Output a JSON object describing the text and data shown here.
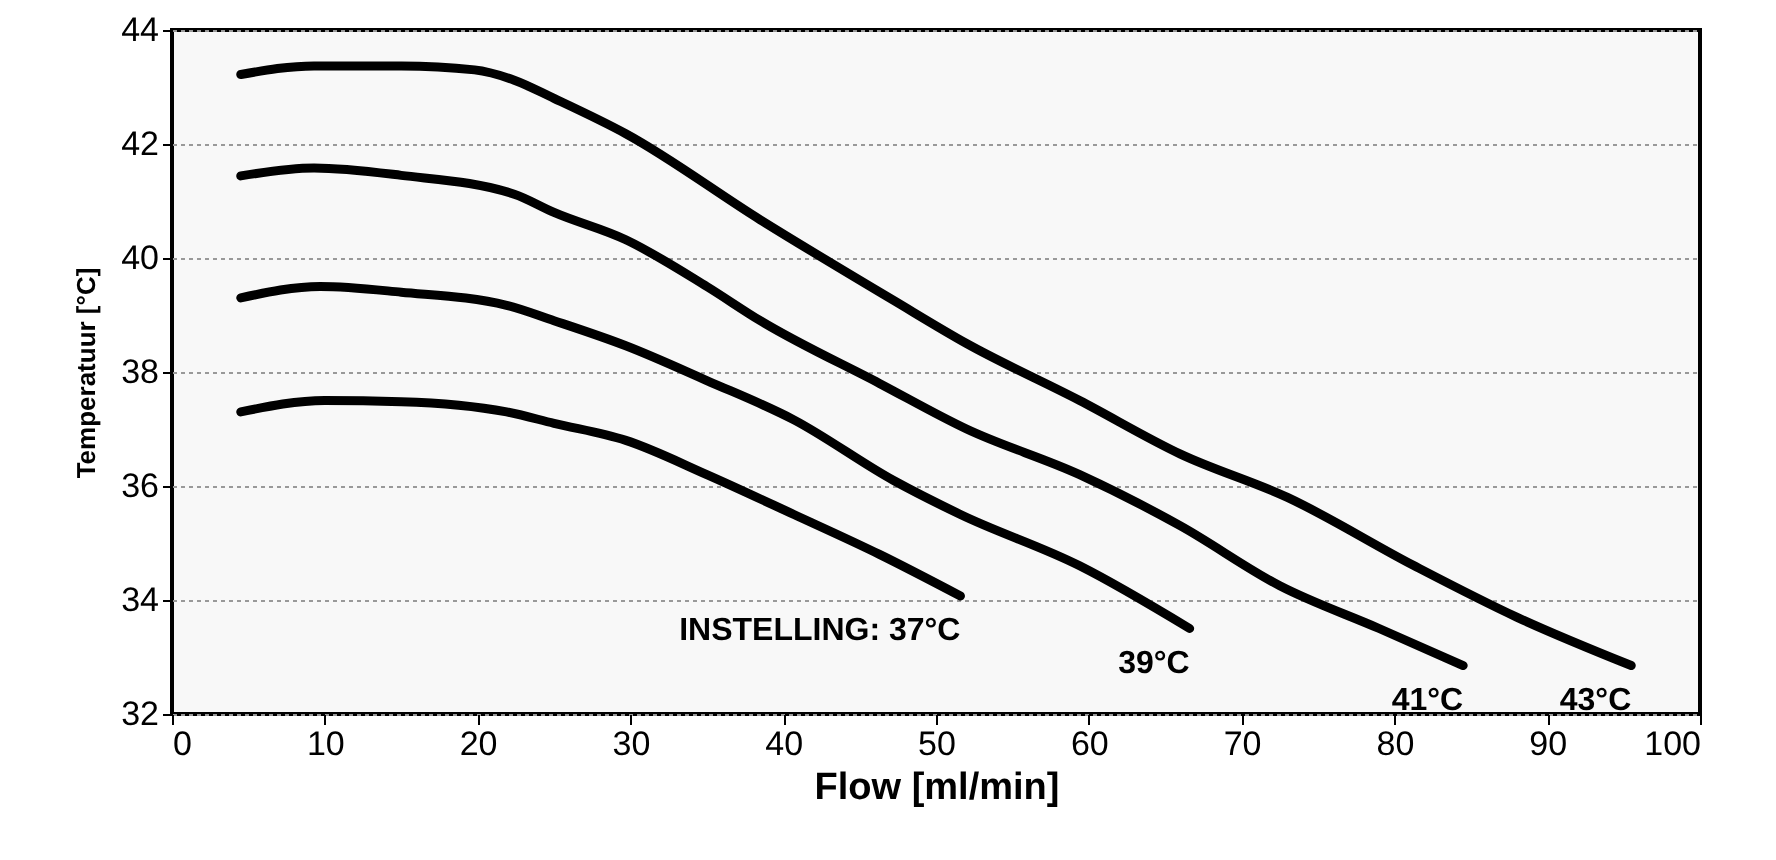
{
  "chart_data": {
    "type": "line",
    "xlabel": "Flow [ml/min]",
    "ylabel": "Temperatuur [°C]",
    "xlim": [
      0,
      100
    ],
    "xticks": [
      0,
      10,
      20,
      30,
      40,
      50,
      60,
      70,
      80,
      90,
      100
    ],
    "ylim": [
      32,
      44
    ],
    "yticks": [
      32,
      34,
      36,
      38,
      40,
      42,
      44
    ],
    "grid": "y",
    "line_style": "solid",
    "series": [
      {
        "name": "INSTELLING: 37°C",
        "color": "#000000",
        "x": [
          4.5,
          10,
          15,
          21.9,
          25,
          29.7,
          35,
          40.7,
          46.3,
          51.6
        ],
        "values": [
          37.3,
          37.5,
          37.48,
          37.3,
          37.1,
          36.8,
          36.2,
          35.5,
          34.8,
          34.07
        ]
      },
      {
        "name": "39°C",
        "color": "#000000",
        "x": [
          4.5,
          9.7,
          15,
          21.9,
          25,
          29.7,
          35,
          40.7,
          47.2,
          51.6,
          59.4,
          66.6
        ],
        "values": [
          39.3,
          39.5,
          39.4,
          39.17,
          38.9,
          38.46,
          37.85,
          37.16,
          36.1,
          35.5,
          34.6,
          33.5
        ]
      },
      {
        "name": "41°C",
        "color": "#000000",
        "x": [
          4.5,
          9.3,
          15,
          22.4,
          25,
          29.7,
          35,
          38.5,
          46.3,
          52,
          59.4,
          66,
          72.5,
          79,
          84.5
        ],
        "values": [
          41.44,
          41.58,
          41.45,
          41.12,
          40.8,
          40.32,
          39.5,
          38.9,
          37.8,
          37.0,
          36.2,
          35.3,
          34.25,
          33.5,
          32.85
        ]
      },
      {
        "name": "43°C",
        "color": "#000000",
        "x": [
          4.5,
          9.3,
          15,
          19.8,
          22.4,
          25,
          29.7,
          38.5,
          47.2,
          52,
          59.4,
          66,
          73,
          81.3,
          88,
          95.5
        ],
        "values": [
          43.22,
          43.37,
          43.37,
          43.3,
          43.12,
          42.8,
          42.18,
          40.67,
          39.26,
          38.5,
          37.5,
          36.56,
          35.8,
          34.6,
          33.7,
          32.85
        ]
      }
    ]
  }
}
